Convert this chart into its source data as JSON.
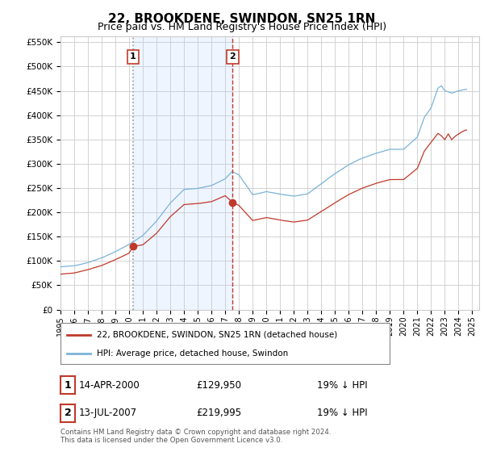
{
  "title": "22, BROOKDENE, SWINDON, SN25 1RN",
  "subtitle": "Price paid vs. HM Land Registry's House Price Index (HPI)",
  "title_fontsize": 11,
  "subtitle_fontsize": 9,
  "ylim": [
    0,
    562500
  ],
  "yticks": [
    0,
    50000,
    100000,
    150000,
    200000,
    250000,
    300000,
    350000,
    400000,
    450000,
    500000,
    550000
  ],
  "ytick_labels": [
    "£0",
    "£50K",
    "£100K",
    "£150K",
    "£200K",
    "£250K",
    "£300K",
    "£350K",
    "£400K",
    "£450K",
    "£500K",
    "£550K"
  ],
  "hpi_color": "#7ab3d8",
  "price_color": "#c0392b",
  "vline1_color": "#aaaaaa",
  "vline2_color": "#c0392b",
  "shade_color": "#ddeeff",
  "grid_color": "#cccccc",
  "bg_color": "#ffffff",
  "legend_label_red": "22, BROOKDENE, SWINDON, SN25 1RN (detached house)",
  "legend_label_blue": "HPI: Average price, detached house, Swindon",
  "purchase1_date": "14-APR-2000",
  "purchase1_price": "£129,950",
  "purchase1_hpi": "19% ↓ HPI",
  "purchase2_date": "13-JUL-2007",
  "purchase2_price": "£219,995",
  "purchase2_hpi": "19% ↓ HPI",
  "footer": "Contains HM Land Registry data © Crown copyright and database right 2024.\nThis data is licensed under the Open Government Licence v3.0.",
  "purchase1_year": 2000.29,
  "purchase2_year": 2007.54,
  "purchase1_value": 129950,
  "purchase2_value": 219995,
  "xmin": 1995,
  "xmax": 2025.5,
  "xtick_years": [
    1995,
    1996,
    1997,
    1998,
    1999,
    2000,
    2001,
    2002,
    2003,
    2004,
    2005,
    2006,
    2007,
    2008,
    2009,
    2010,
    2011,
    2012,
    2013,
    2014,
    2015,
    2016,
    2017,
    2018,
    2019,
    2020,
    2021,
    2022,
    2023,
    2024,
    2025
  ]
}
